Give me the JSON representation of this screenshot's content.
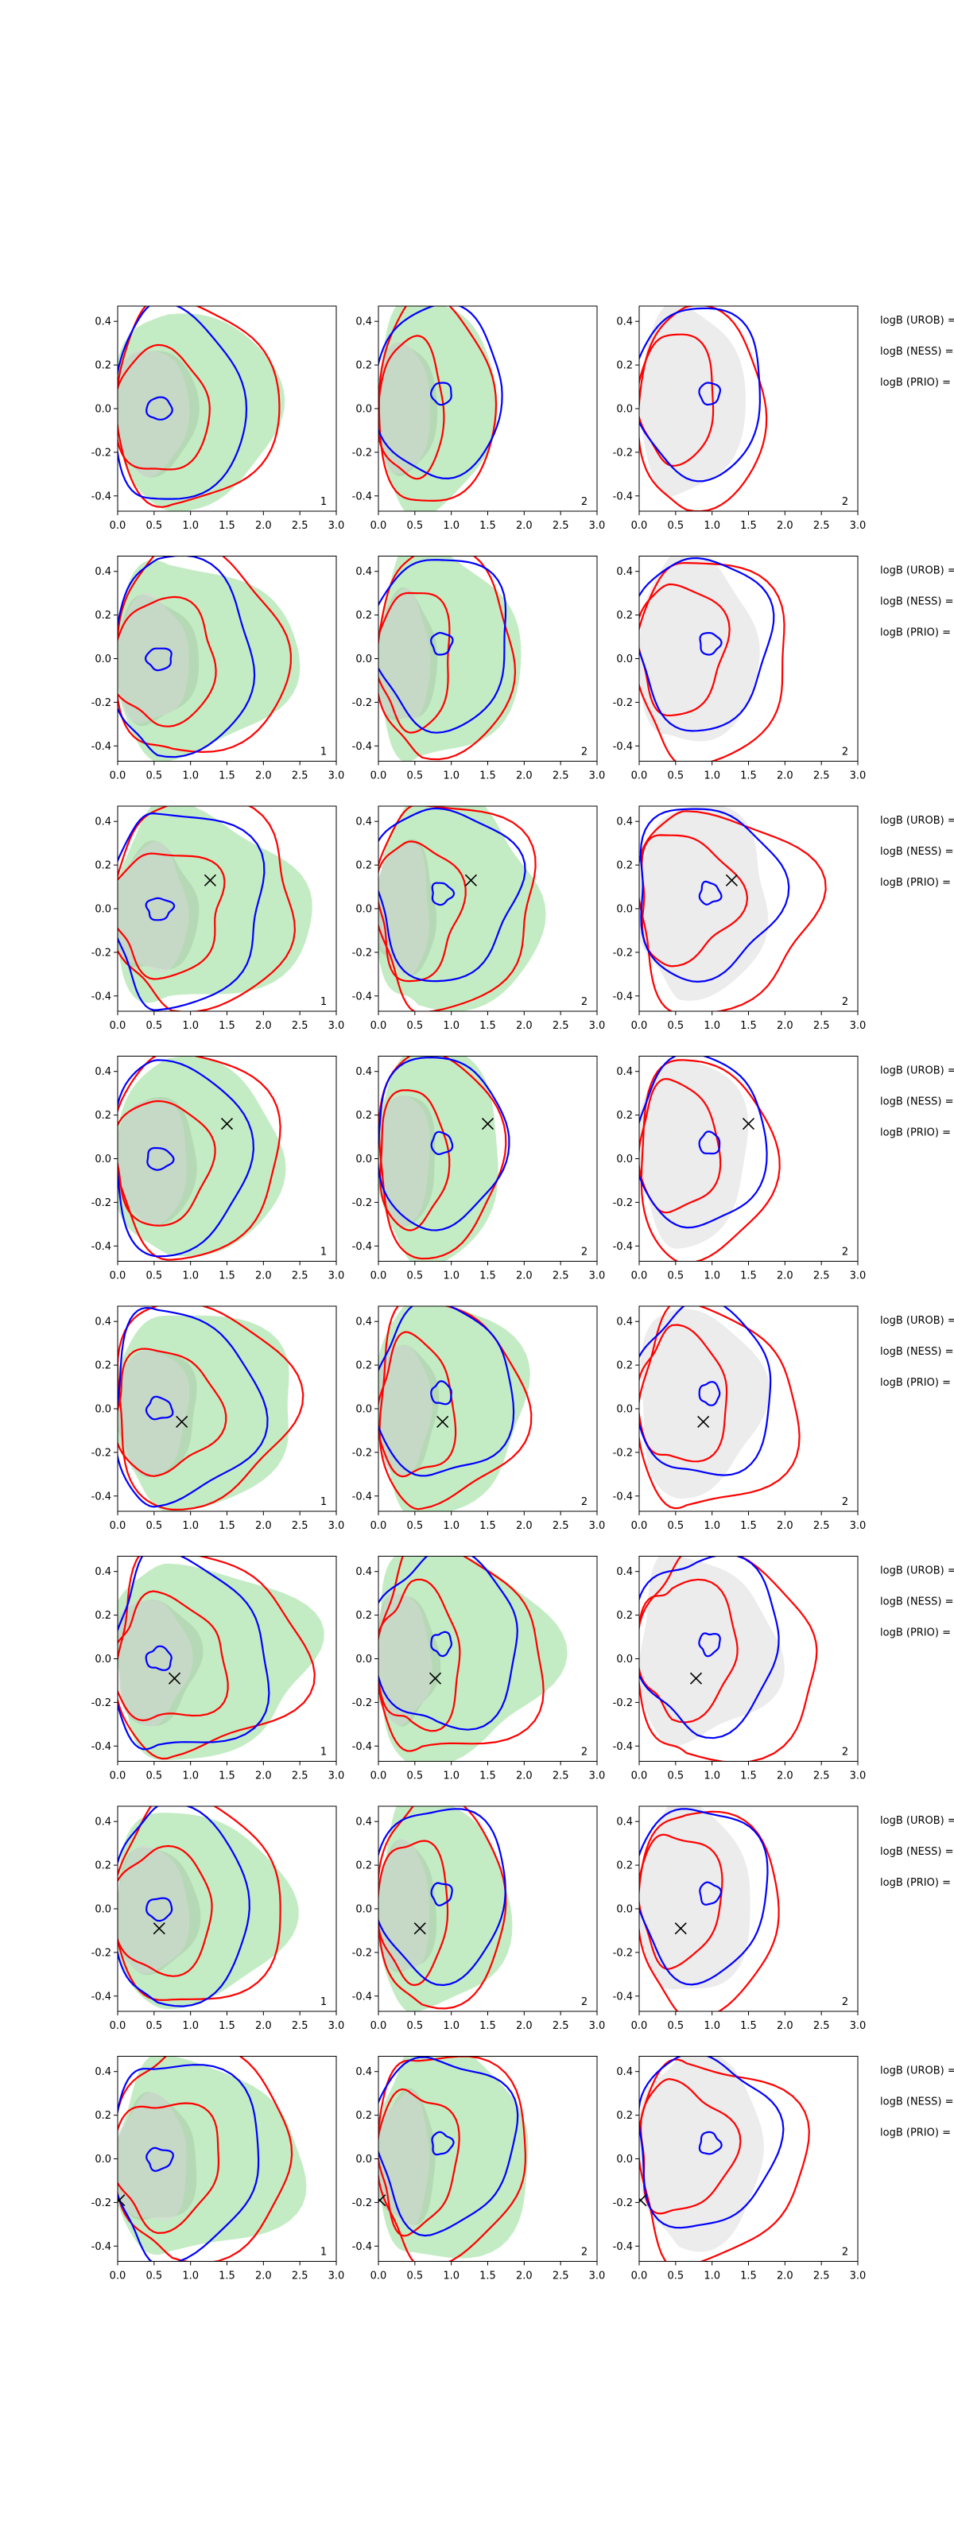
{
  "chart_data": {
    "type": "contour",
    "layout": {
      "rows": 8,
      "cols": 3
    },
    "xlim": [
      0,
      3.0
    ],
    "ylim": [
      -0.47,
      0.47
    ],
    "xticks": [
      "0.0",
      "0.5",
      "1.0",
      "1.5",
      "2.0",
      "2.5",
      "3.0"
    ],
    "yticks": [
      "0.4",
      "0.2",
      "0.0",
      "-0.2",
      "-0.4"
    ],
    "yticks_values": [
      0.4,
      0.2,
      0.0,
      -0.2,
      -0.4
    ],
    "colors": {
      "green_fill": "#c4ecc4",
      "grey_fill": "#d8d8d8",
      "red_line": "#ff0000",
      "blue_line": "#0000ff",
      "marker": "#000000"
    },
    "panel_labels": [
      "1",
      "2",
      "2"
    ],
    "side_labels": [
      "logB (UROB) =",
      "logB (NESS) =",
      "logB (PRIO) ="
    ],
    "rows": [
      {
        "marker": null
      },
      {
        "marker": null
      },
      {
        "marker": [
          1.27,
          0.13
        ]
      },
      {
        "marker": [
          1.5,
          0.16
        ]
      },
      {
        "marker": [
          0.88,
          -0.06
        ]
      },
      {
        "marker": [
          0.78,
          -0.09
        ]
      },
      {
        "marker": [
          0.57,
          -0.09
        ]
      },
      {
        "marker": [
          0.02,
          -0.19
        ]
      }
    ]
  }
}
